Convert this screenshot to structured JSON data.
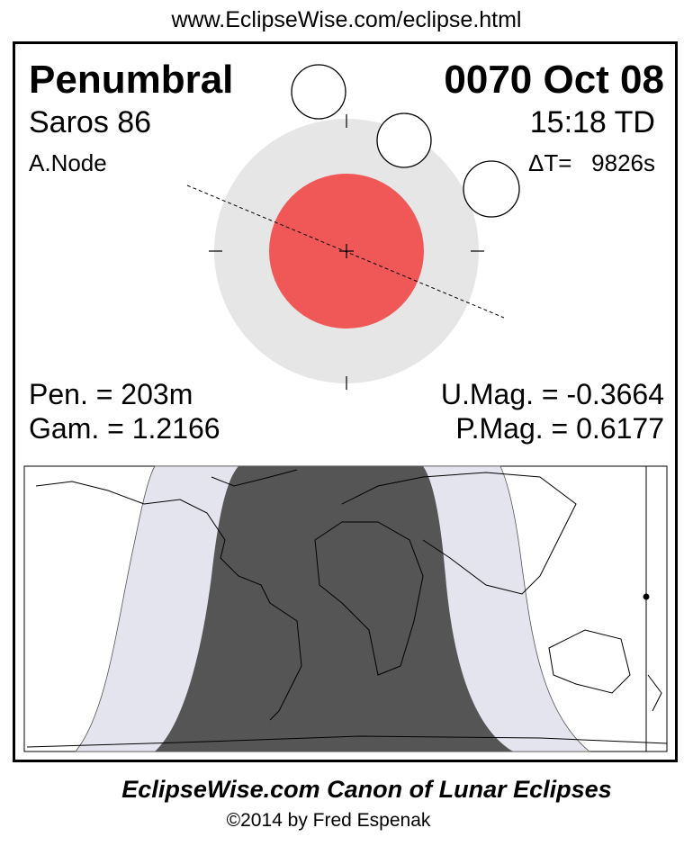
{
  "header": {
    "url": "www.EclipseWise.com/eclipse.html"
  },
  "eclipse": {
    "type": "Penumbral",
    "date": "0070 Oct 08",
    "saros": "Saros  86",
    "time": "15:18 TD",
    "node": "A.Node",
    "delta_t": "ΔT=   9826s",
    "pen_duration": "Pen. = 203m",
    "gamma": "Gam. = 1.2166",
    "umbral_mag": "U.Mag. = -0.3664",
    "penumbral_mag": "P.Mag. = 0.6177"
  },
  "colors": {
    "umbra": "#f05757",
    "penumbra": "#e6e6e6",
    "map_night": "#555555",
    "map_penumbral": "#e4e4ee"
  },
  "footer": {
    "title": "EclipseWise.com Canon of Lunar Eclipses",
    "copyright": "©2014 by Fred Espenak"
  }
}
